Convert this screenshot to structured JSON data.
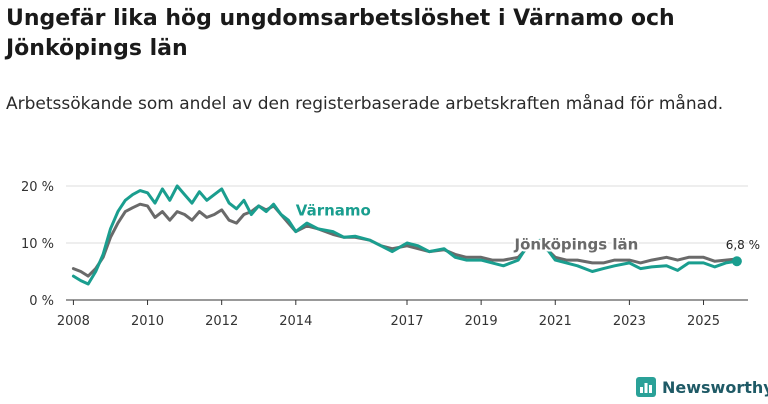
{
  "title": "Ungefär lika hög ungdomsarbetslöshet i Värnamo och Jönköpings län",
  "subtitle": "Arbetssökande som andel av den registerbaserade arbetskraften månad för månad.",
  "brand": {
    "name": "Newsworthy",
    "color": "#1f5a66",
    "accent": "#2aa198"
  },
  "chart_data": {
    "type": "line",
    "title": "Ungefär lika hög ungdomsarbetslöshet i Värnamo och Jönköpings län",
    "xlabel": "",
    "ylabel": "",
    "x_range": [
      2007.8,
      2026.2
    ],
    "ylim": [
      0,
      20
    ],
    "y_ticks": [
      0,
      10,
      20
    ],
    "y_tick_labels": [
      "0 %",
      "10 %",
      "20 %"
    ],
    "x_ticks": [
      2008,
      2010,
      2012,
      2014,
      2017,
      2019,
      2021,
      2023,
      2025
    ],
    "x_tick_labels": [
      "2008",
      "2010",
      "2012",
      "2014",
      "2017",
      "2019",
      "2021",
      "2023",
      "2025"
    ],
    "grid": true,
    "last_value_label": "6,8 %",
    "series": [
      {
        "name": "Värnamo",
        "color": "#1a9e8f",
        "x": [
          2008.0,
          2008.2,
          2008.4,
          2008.6,
          2008.8,
          2009.0,
          2009.2,
          2009.4,
          2009.6,
          2009.8,
          2010.0,
          2010.2,
          2010.4,
          2010.6,
          2010.8,
          2011.0,
          2011.2,
          2011.4,
          2011.6,
          2011.8,
          2012.0,
          2012.2,
          2012.4,
          2012.6,
          2012.8,
          2013.0,
          2013.2,
          2013.4,
          2013.6,
          2013.8,
          2014.0,
          2014.3,
          2014.6,
          2015.0,
          2015.3,
          2015.6,
          2016.0,
          2016.3,
          2016.6,
          2017.0,
          2017.3,
          2017.6,
          2018.0,
          2018.3,
          2018.6,
          2019.0,
          2019.3,
          2019.6,
          2020.0,
          2020.3,
          2020.6,
          2021.0,
          2021.3,
          2021.6,
          2022.0,
          2022.3,
          2022.6,
          2023.0,
          2023.3,
          2023.6,
          2024.0,
          2024.3,
          2024.6,
          2025.0,
          2025.3,
          2025.6,
          2025.9
        ],
        "values": [
          4.2,
          3.4,
          2.8,
          5.0,
          8.0,
          12.5,
          15.5,
          17.5,
          18.5,
          19.2,
          18.8,
          17.0,
          19.5,
          17.5,
          20.0,
          18.5,
          17.0,
          19.0,
          17.5,
          18.5,
          19.5,
          17.0,
          16.0,
          17.5,
          15.0,
          16.5,
          15.5,
          16.8,
          15.0,
          14.0,
          12.0,
          13.5,
          12.5,
          12.0,
          11.0,
          11.2,
          10.5,
          9.5,
          8.5,
          10.0,
          9.5,
          8.5,
          9.0,
          7.5,
          7.0,
          7.0,
          6.5,
          6.0,
          7.0,
          10.0,
          10.5,
          7.0,
          6.5,
          6.0,
          5.0,
          5.5,
          6.0,
          6.5,
          5.5,
          5.8,
          6.0,
          5.2,
          6.5,
          6.5,
          5.8,
          6.5,
          6.8
        ]
      },
      {
        "name": "Jönköpings län",
        "color": "#6a6a6a",
        "x": [
          2008.0,
          2008.2,
          2008.4,
          2008.6,
          2008.8,
          2009.0,
          2009.2,
          2009.4,
          2009.6,
          2009.8,
          2010.0,
          2010.2,
          2010.4,
          2010.6,
          2010.8,
          2011.0,
          2011.2,
          2011.4,
          2011.6,
          2011.8,
          2012.0,
          2012.2,
          2012.4,
          2012.6,
          2012.8,
          2013.0,
          2013.2,
          2013.4,
          2013.6,
          2013.8,
          2014.0,
          2014.3,
          2014.6,
          2015.0,
          2015.3,
          2015.6,
          2016.0,
          2016.3,
          2016.6,
          2017.0,
          2017.3,
          2017.6,
          2018.0,
          2018.3,
          2018.6,
          2019.0,
          2019.3,
          2019.6,
          2020.0,
          2020.3,
          2020.6,
          2021.0,
          2021.3,
          2021.6,
          2022.0,
          2022.3,
          2022.6,
          2023.0,
          2023.3,
          2023.6,
          2024.0,
          2024.3,
          2024.6,
          2025.0,
          2025.3,
          2025.6,
          2025.9
        ],
        "values": [
          5.5,
          5.0,
          4.2,
          5.5,
          7.5,
          11.0,
          13.5,
          15.5,
          16.2,
          16.8,
          16.5,
          14.5,
          15.5,
          14.0,
          15.5,
          15.0,
          14.0,
          15.5,
          14.5,
          15.0,
          15.8,
          14.0,
          13.5,
          15.0,
          15.5,
          16.5,
          15.8,
          16.5,
          15.0,
          13.5,
          12.0,
          13.0,
          12.5,
          11.5,
          11.0,
          11.0,
          10.5,
          9.5,
          9.0,
          9.5,
          9.0,
          8.5,
          8.8,
          8.0,
          7.5,
          7.5,
          7.0,
          7.0,
          7.5,
          9.5,
          10.0,
          7.5,
          7.0,
          7.0,
          6.5,
          6.5,
          7.0,
          7.0,
          6.5,
          7.0,
          7.5,
          7.0,
          7.5,
          7.5,
          6.8,
          7.0,
          7.2
        ]
      }
    ],
    "annotations": [
      {
        "text": "Värnamo",
        "series": "Värnamo",
        "x": 2014.0,
        "y": 14.8
      },
      {
        "text": "Jönköpings län",
        "series": "Jönköpings län",
        "x": 2019.9,
        "y": 8.9
      }
    ]
  }
}
